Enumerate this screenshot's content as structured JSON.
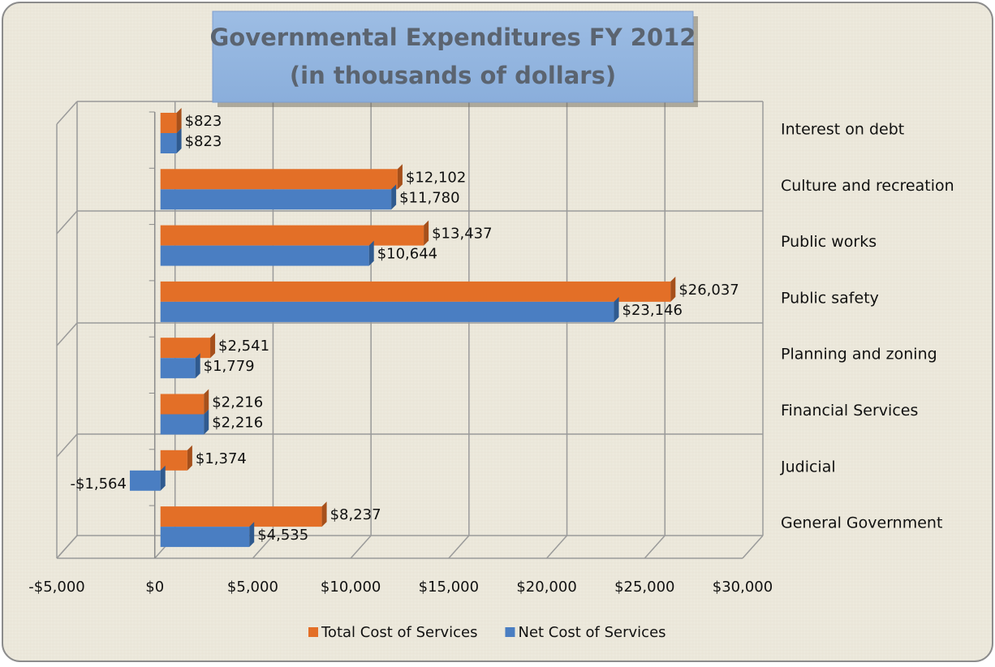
{
  "chart_data": {
    "type": "bar",
    "orientation": "horizontal",
    "title": "Governmental Expenditures FY 2012",
    "subtitle": "(in thousands of dollars)",
    "categories": [
      "Interest on debt",
      "Culture and recreation",
      "Public works",
      "Public safety",
      "Planning and zoning",
      "Financial Services",
      "Judicial",
      "General Government"
    ],
    "series": [
      {
        "name": "Total Cost of Services",
        "color": "#e36f27",
        "values": [
          823,
          12102,
          13437,
          26037,
          2541,
          2216,
          1374,
          8237
        ],
        "value_labels": [
          "$823",
          "$12,102",
          "$13,437",
          "$26,037",
          "$2,541",
          "$2,216",
          "$1,374",
          "$8,237"
        ]
      },
      {
        "name": "Net Cost of Services",
        "color": "#4a7ec2",
        "values": [
          823,
          11780,
          10644,
          23146,
          1779,
          2216,
          -1564,
          4535
        ],
        "value_labels": [
          "$823",
          "$11,780",
          "$10,644",
          "$23,146",
          "$1,779",
          "$2,216",
          "-$1,564",
          "$4,535"
        ]
      }
    ],
    "xlim": [
      -5000,
      30000
    ],
    "xticks": [
      {
        "value": -5000,
        "label": "-$5,000"
      },
      {
        "value": 0,
        "label": "$0"
      },
      {
        "value": 5000,
        "label": "$5,000"
      },
      {
        "value": 10000,
        "label": "$10,000"
      },
      {
        "value": 15000,
        "label": "$15,000"
      },
      {
        "value": 20000,
        "label": "$20,000"
      },
      {
        "value": 25000,
        "label": "$25,000"
      },
      {
        "value": 30000,
        "label": "$30,000"
      }
    ],
    "grid": true,
    "legend": "bottom"
  }
}
